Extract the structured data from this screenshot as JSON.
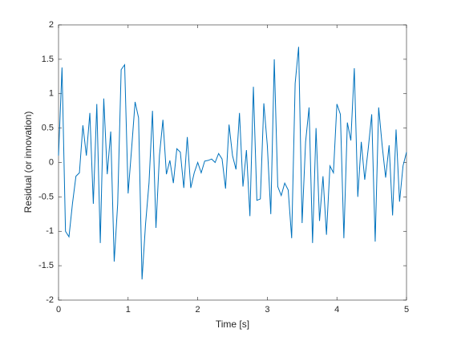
{
  "chart_data": {
    "type": "line",
    "xlabel": "Time [s]",
    "ylabel": "Residual (or innovation)",
    "x": [
      0,
      0.05,
      0.1,
      0.15,
      0.2,
      0.25,
      0.3,
      0.35,
      0.4,
      0.45,
      0.5,
      0.55,
      0.6,
      0.65,
      0.7,
      0.75,
      0.8,
      0.85,
      0.9,
      0.95,
      1,
      1.05,
      1.1,
      1.15,
      1.2,
      1.25,
      1.3,
      1.35,
      1.4,
      1.45,
      1.5,
      1.55,
      1.6,
      1.65,
      1.7,
      1.75,
      1.8,
      1.85,
      1.9,
      1.95,
      2,
      2.05,
      2.1,
      2.15,
      2.2,
      2.25,
      2.3,
      2.35,
      2.4,
      2.45,
      2.5,
      2.55,
      2.6,
      2.65,
      2.7,
      2.75,
      2.8,
      2.85,
      2.9,
      2.95,
      3,
      3.05,
      3.1,
      3.15,
      3.2,
      3.25,
      3.3,
      3.35,
      3.4,
      3.45,
      3.5,
      3.55,
      3.6,
      3.65,
      3.7,
      3.75,
      3.8,
      3.85,
      3.9,
      3.95,
      4,
      4.05,
      4.1,
      4.15,
      4.2,
      4.25,
      4.3,
      4.35,
      4.4,
      4.45,
      4.5,
      4.55,
      4.6,
      4.65,
      4.7,
      4.75,
      4.8,
      4.85,
      4.9,
      4.95,
      5
    ],
    "series": [
      {
        "color": "#0072bd",
        "values": [
          0.1,
          1.38,
          -1.0,
          -1.08,
          -0.6,
          -0.2,
          -0.15,
          0.54,
          0.1,
          0.72,
          -0.6,
          0.85,
          -1.17,
          0.93,
          -0.17,
          0.45,
          -1.44,
          -0.6,
          1.35,
          1.42,
          -0.45,
          0.2,
          0.88,
          0.65,
          -1.7,
          -0.9,
          -0.3,
          0.75,
          -0.95,
          0.1,
          0.62,
          -0.17,
          0.03,
          -0.3,
          0.2,
          0.15,
          -0.37,
          0.37,
          -0.37,
          -0.15,
          0.0,
          -0.15,
          0.02,
          0.03,
          0.05,
          0.0,
          0.13,
          0.05,
          -0.38,
          0.55,
          0.1,
          -0.1,
          0.72,
          -0.35,
          0.18,
          -0.78,
          1.1,
          -0.55,
          -0.53,
          0.86,
          0.25,
          -0.75,
          1.5,
          -0.35,
          -0.48,
          -0.3,
          -0.4,
          -1.1,
          1.15,
          1.68,
          -0.88,
          0.3,
          0.8,
          -1.17,
          0.5,
          -0.85,
          -0.2,
          -1.05,
          -0.05,
          -0.15,
          0.85,
          0.7,
          -1.1,
          0.58,
          0.32,
          1.37,
          -0.5,
          0.3,
          -0.25,
          0.2,
          0.7,
          -1.15,
          0.8,
          0.25,
          -0.22,
          0.25,
          -0.77,
          0.48,
          -0.57,
          -0.05,
          0.15
        ]
      }
    ],
    "xlim": [
      0,
      5
    ],
    "xticks": [
      0,
      1,
      2,
      3,
      4,
      5
    ],
    "ylim": [
      -2,
      2
    ],
    "yticks": [
      -2,
      -1.5,
      -1,
      -0.5,
      0,
      0.5,
      1,
      1.5,
      2
    ]
  }
}
